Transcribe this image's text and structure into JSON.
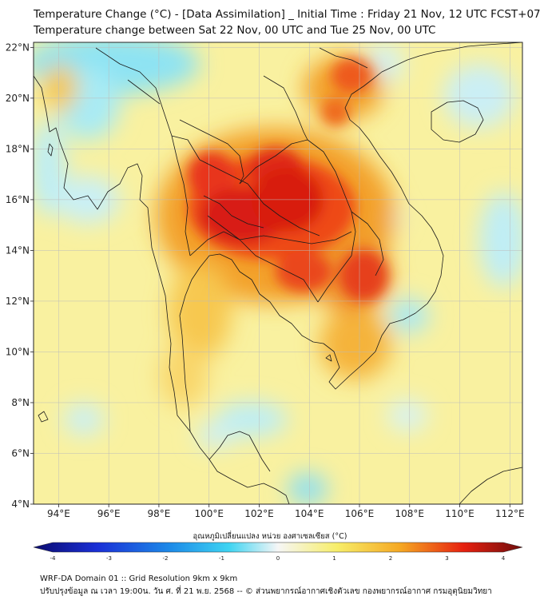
{
  "header": {
    "title_line1": "Temperature Change (°C) - [Data Assimilation] _ Initial Time : Friday 21 Nov, 12 UTC FCST+072",
    "title_line2": "Temperature change between Sat 22 Nov, 00 UTC and Tue 25 Nov, 00 UTC"
  },
  "map": {
    "lat_labels": [
      "22°N",
      "20°N",
      "18°N",
      "16°N",
      "14°N",
      "12°N",
      "10°N",
      "8°N",
      "6°N",
      "4°N"
    ],
    "lon_labels": [
      "94°E",
      "96°E",
      "98°E",
      "100°E",
      "102°E",
      "104°E",
      "106°E",
      "108°E",
      "110°E",
      "112°E"
    ],
    "lat_range": [
      4,
      22.2
    ],
    "lon_range": [
      93,
      112.5
    ]
  },
  "colorbar": {
    "label": "อุณหภูมิเปลี่ยนแปลง หน่วย องศาเซลเซียส (°C)",
    "tick_labels": [
      "-4",
      "-3",
      "-2",
      "-1",
      "0",
      "1",
      "2",
      "3",
      "4"
    ],
    "range": [
      -4,
      4
    ],
    "colors": [
      "#0b0b6e",
      "#1a2fd6",
      "#1d8be8",
      "#3fd4f2",
      "#f6f6f6",
      "#f7ee6a",
      "#f5a823",
      "#e6200f",
      "#6e0d0d"
    ]
  },
  "footer": {
    "line1": "WRF-DA Domain 01 :: Grid Resolution 9km x 9km",
    "line2": "ปรับปรุงข้อมูล ณ เวลา 19:00น. วัน ศ. ที่ 21 พ.ย. 2568 -- © ส่วนพยากรณ์อากาศเชิงตัวเลข กองพยากรณ์อากาศ กรมอุตุนิยมวิทยา"
  }
}
